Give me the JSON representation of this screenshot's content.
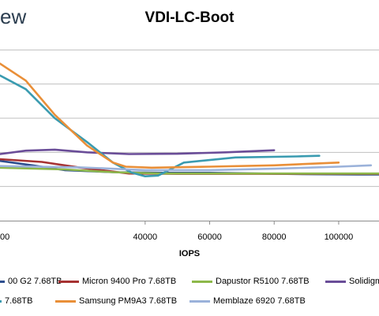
{
  "logo_text": "ew",
  "chart_data": {
    "type": "line",
    "title": "VDI-LC-Boot",
    "xlabel": "IOPS",
    "ylabel": "",
    "xlim": [
      -5000,
      112500
    ],
    "ylim": [
      0,
      5.4
    ],
    "grid": true,
    "x_ticks": [
      40000,
      60000,
      80000,
      100000
    ],
    "x_tick_labels": [
      "40000",
      "60000",
      "80000",
      "100000"
    ],
    "partial_tick_label": "00",
    "series": [
      {
        "name": "00 G2 7.68TB",
        "color": "#2e4f8f",
        "points": [
          [
            -5000,
            1.75
          ],
          [
            5000,
            1.62
          ],
          [
            15000,
            1.48
          ],
          [
            30000,
            1.42
          ],
          [
            45000,
            1.4
          ],
          [
            60000,
            1.4
          ],
          [
            75000,
            1.38
          ],
          [
            92000,
            1.36
          ],
          [
            106000,
            1.35
          ],
          [
            112500,
            1.35
          ]
        ]
      },
      {
        "name": "Micron 9400 Pro 7.68TB",
        "color": "#a63232",
        "points": [
          [
            -5000,
            1.8
          ],
          [
            8000,
            1.72
          ],
          [
            20000,
            1.55
          ],
          [
            35000,
            1.38
          ],
          [
            50000,
            1.37
          ],
          [
            70000,
            1.37
          ],
          [
            90000,
            1.37
          ],
          [
            112500,
            1.37
          ]
        ]
      },
      {
        "name": "Dapustor R5100 7.68TB",
        "color": "#8db84a",
        "points": [
          [
            -5000,
            1.55
          ],
          [
            15000,
            1.5
          ],
          [
            30000,
            1.42
          ],
          [
            45000,
            1.38
          ],
          [
            65000,
            1.38
          ],
          [
            85000,
            1.38
          ],
          [
            112500,
            1.38
          ]
        ]
      },
      {
        "name": "Solidigm",
        "color": "#6a4d98",
        "points": [
          [
            -5000,
            1.95
          ],
          [
            3000,
            2.05
          ],
          [
            12000,
            2.08
          ],
          [
            22000,
            2.0
          ],
          [
            35000,
            1.95
          ],
          [
            50000,
            1.96
          ],
          [
            65000,
            2.0
          ],
          [
            80000,
            2.06
          ]
        ]
      },
      {
        "name": "7.68TB",
        "color": "#3a9bb0",
        "points": [
          [
            -5000,
            4.25
          ],
          [
            3000,
            3.85
          ],
          [
            12000,
            3.0
          ],
          [
            22000,
            2.3
          ],
          [
            30000,
            1.7
          ],
          [
            36000,
            1.4
          ],
          [
            40000,
            1.3
          ],
          [
            44000,
            1.32
          ],
          [
            52000,
            1.7
          ],
          [
            68000,
            1.85
          ],
          [
            87000,
            1.88
          ],
          [
            94000,
            1.9
          ]
        ]
      },
      {
        "name": "Samsung PM9A3 7.68TB",
        "color": "#e98f38",
        "points": [
          [
            -5000,
            4.6
          ],
          [
            3000,
            4.1
          ],
          [
            12000,
            3.1
          ],
          [
            22000,
            2.2
          ],
          [
            30000,
            1.7
          ],
          [
            34000,
            1.58
          ],
          [
            42000,
            1.55
          ],
          [
            60000,
            1.58
          ],
          [
            80000,
            1.62
          ],
          [
            100000,
            1.7
          ]
        ]
      },
      {
        "name": "Memblaze 6920 7.68TB",
        "color": "#9bb2da",
        "points": [
          [
            -5000,
            1.6
          ],
          [
            20000,
            1.56
          ],
          [
            40000,
            1.48
          ],
          [
            60000,
            1.48
          ],
          [
            80000,
            1.52
          ],
          [
            100000,
            1.58
          ],
          [
            110000,
            1.62
          ]
        ]
      }
    ]
  }
}
